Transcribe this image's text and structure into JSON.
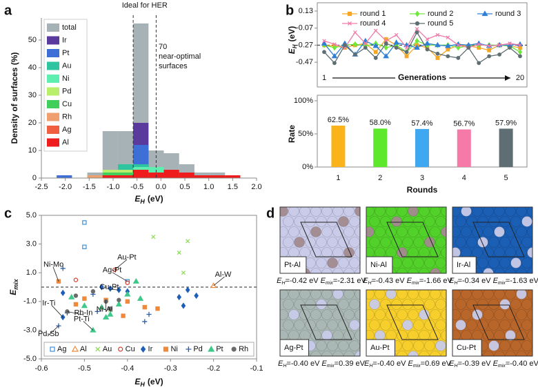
{
  "chart_data": [
    {
      "type": "histogram",
      "panel_label": "a",
      "title": "Ideal for HER",
      "bins": [
        -2.18,
        -1.86,
        -1.54,
        -1.22,
        -0.9,
        -0.58,
        -0.26,
        0.06,
        0.38,
        0.7,
        1.02,
        1.34,
        1.66
      ],
      "series": [
        {
          "name": "total",
          "color": "#a7b2b6",
          "values": [
            1,
            0,
            2,
            17,
            17,
            56,
            10,
            9,
            5,
            2,
            2,
            1
          ]
        },
        {
          "name": "Ir",
          "color": "#5b3a9e",
          "values": [
            0,
            0,
            0,
            0,
            0,
            20,
            2,
            0,
            0,
            0,
            0,
            0
          ]
        },
        {
          "name": "Pt",
          "color": "#3d6fd6",
          "values": [
            1,
            0,
            0,
            0,
            0,
            12,
            1,
            0,
            0,
            0,
            0,
            0
          ]
        },
        {
          "name": "Au",
          "color": "#2fc4a0",
          "values": [
            0,
            0,
            1,
            2,
            5,
            5,
            4,
            3,
            1,
            1,
            1,
            0
          ]
        },
        {
          "name": "Ni",
          "color": "#5eefb0",
          "values": [
            0,
            0,
            0,
            1,
            2,
            4,
            4,
            2,
            0,
            0,
            0,
            0
          ]
        },
        {
          "name": "Pd",
          "color": "#b9ef6a",
          "values": [
            0,
            0,
            1,
            3,
            3,
            3,
            2,
            1,
            0,
            0,
            0,
            0
          ]
        },
        {
          "name": "Cu",
          "color": "#3fcf5a",
          "values": [
            0,
            0,
            1,
            2,
            2,
            3,
            1,
            1,
            1,
            0,
            0,
            0
          ]
        },
        {
          "name": "Rh",
          "color": "#f0a070",
          "values": [
            0,
            0,
            1,
            1,
            1,
            2,
            1,
            1,
            1,
            1,
            0,
            1
          ]
        },
        {
          "name": "Ag",
          "color": "#f06040",
          "values": [
            0,
            0,
            0,
            1,
            1,
            2,
            1,
            1,
            1,
            0,
            0,
            0
          ]
        },
        {
          "name": "Al",
          "color": "#ee1c1c",
          "values": [
            0,
            0,
            0,
            1,
            1,
            3,
            2,
            3,
            2,
            1,
            1,
            1
          ]
        }
      ],
      "xlim": [
        -2.5,
        2
      ],
      "xticks": [
        -2.5,
        {
          "value": -2,
          "label": "-2.0"
        },
        -1.5,
        {
          "value": -1,
          "label": "-1.0"
        },
        -0.5,
        {
          "value": 0,
          "label": "0.0"
        },
        0.5,
        {
          "value": 1,
          "label": "1.0"
        },
        1.5,
        {
          "value": 2,
          "label": "2.0"
        }
      ],
      "ylim": [
        0,
        58
      ],
      "yticks": [
        0,
        10,
        20,
        30,
        40,
        50
      ],
      "x_label": {
        "symbol": "E",
        "sub": "H",
        "unit": "(eV)"
      },
      "y_label": "Density of surfaces (%)",
      "vlines": [
        -0.58,
        -0.1
      ],
      "annotation": [
        "70",
        "near-optimal",
        "surfaces"
      ],
      "legend": "upper left"
    },
    {
      "type": "line",
      "panel_label": "b",
      "x": [
        1,
        2,
        3,
        4,
        5,
        6,
        7,
        8,
        9,
        10,
        11,
        12,
        13,
        14,
        15,
        16,
        17,
        18,
        19,
        20
      ],
      "series": [
        {
          "name": "round 1",
          "color": "#f5a623",
          "marker": "square",
          "values": [
            -0.27,
            -0.28,
            -0.3,
            -0.27,
            -0.25,
            -0.35,
            -0.2,
            -0.27,
            -0.4,
            -0.27,
            -0.3,
            -0.42,
            -0.32,
            -0.27,
            -0.28,
            -0.3,
            -0.33,
            -0.27,
            -0.28,
            -0.3
          ]
        },
        {
          "name": "round 2",
          "color": "#6ee83a",
          "marker": "diamond",
          "values": [
            -0.27,
            -0.3,
            -0.27,
            -0.26,
            -0.28,
            -0.25,
            -0.3,
            -0.27,
            -0.35,
            -0.22,
            -0.27,
            -0.27,
            -0.27,
            -0.3,
            -0.28,
            -0.27,
            -0.27,
            -0.27,
            -0.28,
            -0.35
          ]
        },
        {
          "name": "round 3",
          "color": "#2f7fd8",
          "marker": "triangle",
          "values": [
            -0.25,
            -0.4,
            -0.25,
            -0.38,
            -0.22,
            -0.28,
            -0.4,
            -0.24,
            -0.27,
            -0.3,
            -0.25,
            -0.27,
            -0.28,
            -0.26,
            -0.27,
            -0.25,
            -0.28,
            -0.27,
            -0.27,
            -0.26
          ]
        },
        {
          "name": "round 4",
          "color": "#f07aa8",
          "marker": "x",
          "values": [
            -0.22,
            -0.26,
            -0.3,
            -0.12,
            -0.25,
            -0.1,
            -0.22,
            -0.15,
            -0.3,
            -0.08,
            -0.2,
            -0.15,
            -0.18,
            -0.27,
            -0.3,
            -0.26,
            -0.28,
            -0.27,
            -0.25,
            -0.27
          ]
        },
        {
          "name": "round 5",
          "color": "#5e6e72",
          "marker": "circle",
          "values": [
            -0.35,
            -0.48,
            -0.27,
            -0.38,
            -0.3,
            -0.42,
            -0.25,
            -0.3,
            -0.35,
            -0.12,
            -0.32,
            -0.37,
            -0.4,
            -0.42,
            -0.3,
            -0.48,
            -0.4,
            -0.38,
            -0.3,
            -0.4
          ]
        }
      ],
      "xlim": [
        1,
        20
      ],
      "xticks": [
        1,
        20
      ],
      "x_label": "Generations",
      "ylim": [
        -0.55,
        0.13
      ],
      "yticks": [
        0.13,
        -0.07,
        -0.27,
        -0.47
      ],
      "y_label": {
        "symbol": "E",
        "sub": "H",
        "unit": "(eV)"
      },
      "hline": -0.27,
      "legend": "upper center"
    },
    {
      "type": "bar",
      "categories": [
        "1",
        "2",
        "3",
        "4",
        "5"
      ],
      "values": [
        62.5,
        58.0,
        57.4,
        56.7,
        57.9
      ],
      "value_labels": [
        "62.5%",
        "58.0%",
        "57.4%",
        "56.7%",
        "57.9%"
      ],
      "colors": [
        "#fbb31c",
        "#5ee82c",
        "#3fa8f0",
        "#f57aa8",
        "#5e6e72"
      ],
      "ylim": [
        0,
        100
      ],
      "yticks": [
        {
          "value": 0,
          "label": "0%"
        },
        {
          "value": 50,
          "label": "50%"
        },
        {
          "value": 100,
          "label": "100%"
        }
      ],
      "x_label": "Rounds",
      "y_label": "Rate",
      "grid": false
    },
    {
      "type": "scatter",
      "panel_label": "c",
      "series": [
        {
          "name": "Ag",
          "color": "#3b8fd8",
          "marker": "square",
          "filled": false,
          "x": [
            -0.5,
            -0.5,
            -0.4
          ],
          "y": [
            4.5,
            2.8,
            0.4
          ]
        },
        {
          "name": "Al",
          "color": "#f08a3a",
          "marker": "triangle",
          "filled": false,
          "x": [
            -0.2
          ],
          "y": [
            0.1
          ]
        },
        {
          "name": "Au",
          "color": "#8fdc5a",
          "marker": "x",
          "filled": false,
          "x": [
            -0.34,
            -0.26,
            -0.28,
            -0.27,
            -0.44
          ],
          "y": [
            3.5,
            3.2,
            2.4,
            1.0,
            -1.6
          ]
        },
        {
          "name": "Cu",
          "color": "#d83a2a",
          "marker": "circle",
          "filled": false,
          "x": [
            -0.43,
            -0.52,
            -0.4
          ],
          "y": [
            1.2,
            0.5,
            0.3
          ]
        },
        {
          "name": "Ir",
          "color": "#1f5fb8",
          "marker": "diamond",
          "filled": true,
          "x": [
            -0.55,
            -0.46,
            -0.44,
            -0.42,
            -0.28,
            -0.27,
            -0.26,
            -0.24,
            -0.55,
            -0.4
          ],
          "y": [
            -2.1,
            0.0,
            -0.1,
            -0.2,
            -0.7,
            -1.3,
            -0.2,
            -0.6,
            -0.4,
            -0.3
          ]
        },
        {
          "name": "Ni",
          "color": "#f08a3a",
          "marker": "square",
          "filled": true,
          "x": [
            -0.56,
            -0.52,
            -0.5,
            -0.45,
            -0.4,
            -0.36,
            -0.33,
            -0.41
          ],
          "y": [
            0.4,
            -1.2,
            -0.8,
            -0.9,
            -1.0,
            -1.4,
            -1.5,
            -2.0
          ]
        },
        {
          "name": "Pd",
          "color": "#2f5fa8",
          "marker": "plus",
          "filled": false,
          "x": [
            -0.55,
            -0.56,
            -0.54,
            -0.47,
            -0.36,
            -0.35,
            -0.48
          ],
          "y": [
            1.3,
            -2.7,
            -1.8,
            -1.7,
            -2.4,
            -1.9,
            -0.5
          ]
        },
        {
          "name": "Pt",
          "color": "#3fc88a",
          "marker": "triangle",
          "filled": true,
          "x": [
            -0.48,
            -0.53,
            -0.5,
            -0.46,
            -0.44,
            -0.42,
            -0.4,
            -0.37,
            -0.38,
            -0.45
          ],
          "y": [
            -3.0,
            -0.7,
            -1.3,
            -1.4,
            -1.9,
            -1.2,
            -0.5,
            -0.8,
            0.4,
            -2.1
          ]
        },
        {
          "name": "Rh",
          "color": "#6b6b6b",
          "marker": "circle",
          "filled": true,
          "x": [
            -0.54,
            -0.52,
            -0.48,
            -0.45,
            -0.42,
            -0.44
          ],
          "y": [
            -1.7,
            -0.6,
            -0.3,
            -1.0,
            -0.9,
            -1.5
          ]
        }
      ],
      "annotations": [
        {
          "text": "Ni-Mo",
          "x": -0.56,
          "y": 0.4
        },
        {
          "text": "Ag-Pt",
          "x": -0.4,
          "y": 0.4
        },
        {
          "text": "Au-Pt",
          "x": -0.43,
          "y": 1.2
        },
        {
          "text": "Cu-Pt",
          "x": -0.42,
          "y": -0.2
        },
        {
          "text": "Al-W",
          "x": -0.2,
          "y": 0.1
        },
        {
          "text": "Ir-Ti",
          "x": -0.55,
          "y": -2.1
        },
        {
          "text": "Rh-In",
          "x": -0.54,
          "y": -1.7
        },
        {
          "text": "Ni-Al",
          "x": -0.45,
          "y": -0.9
        },
        {
          "text": "Pt-Ti",
          "x": -0.48,
          "y": -3.0
        },
        {
          "text": "Pd-Sb",
          "x": -0.56,
          "y": -2.7
        }
      ],
      "xlim": [
        -0.6,
        -0.1
      ],
      "xticks": [
        -0.6,
        -0.5,
        -0.4,
        -0.3,
        -0.2,
        -0.1
      ],
      "ylim": [
        -5,
        5
      ],
      "yticks": [
        {
          "value": -5,
          "label": "-5.0"
        },
        {
          "value": -3,
          "label": "-3.0"
        },
        {
          "value": -1,
          "label": "-1.0"
        },
        {
          "value": 1,
          "label": "1.0"
        },
        {
          "value": 3,
          "label": "3.0"
        },
        {
          "value": 5,
          "label": "5.0"
        }
      ],
      "x_label": {
        "symbol": "E",
        "sub": "H",
        "unit": "(eV)"
      },
      "y_label": {
        "symbol": "E",
        "sub": "mix"
      },
      "hline": 0,
      "legend": "lower center"
    }
  ],
  "panel_d": {
    "panel_label": "d",
    "symbol": "E",
    "sub_h": "H",
    "sub_mix": "mix",
    "tiles": [
      {
        "label": "Pt-Al",
        "eh": "=-0.42 eV",
        "emix": "=-2.31 eV",
        "base": "#c9cbe9",
        "accent": "#a48a90"
      },
      {
        "label": "Ni-Al",
        "eh": "=-0.43 eV",
        "emix": "=-1.66 eV",
        "base": "#52d12a",
        "accent": "#a48a90"
      },
      {
        "label": "Ir-Al",
        "eh": "=-0.34 eV",
        "emix": "=-1.63 eV",
        "base": "#1b5fb5",
        "accent": "#c9cbe9"
      },
      {
        "label": "Ag-Pt",
        "eh": "=-0.40 eV",
        "emix": "=0.39 eV",
        "base": "#aab8b5",
        "accent": "#c9cbe9"
      },
      {
        "label": "Au-Pt",
        "eh": "=-0.40 eV",
        "emix": "=0.69 eV",
        "base": "#f6cf2c",
        "accent": "#c9cbe9"
      },
      {
        "label": "Cu-Pt",
        "eh": "=-0.39 eV",
        "emix": "=-0.40 eV",
        "base": "#b9662a",
        "accent": "#c9cbe9"
      }
    ]
  }
}
